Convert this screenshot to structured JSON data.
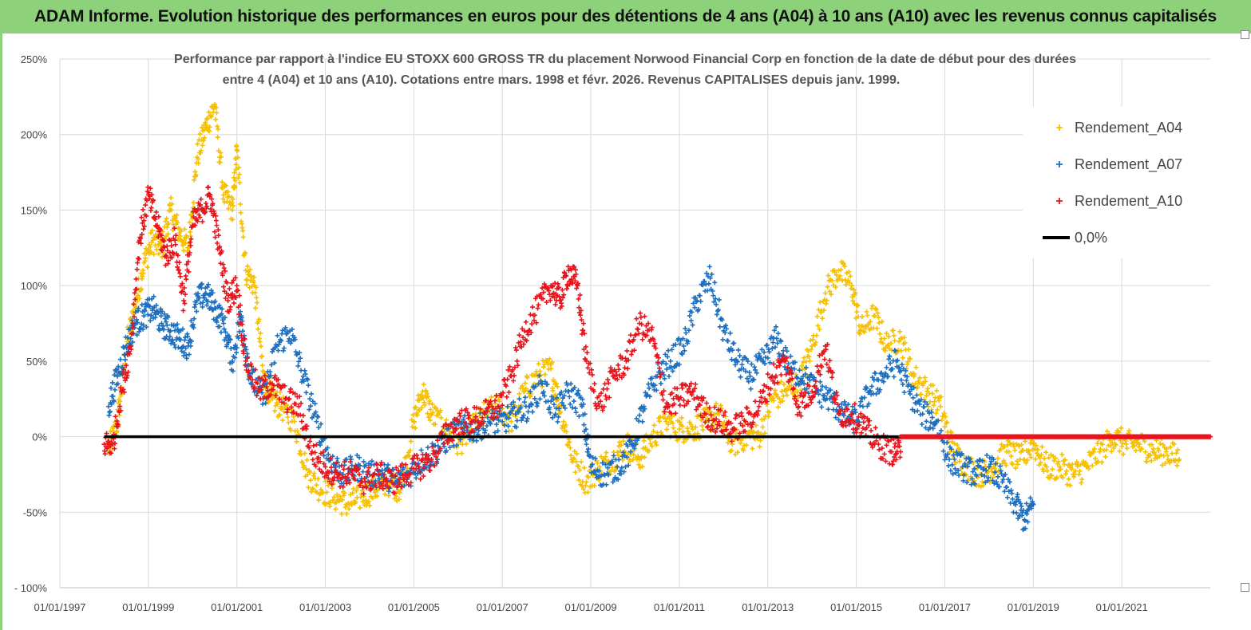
{
  "header": {
    "title": "ADAM Informe. Evolution historique des performances en euros pour des détentions de 4 ans (A04) à 10 ans (A10) avec les revenus connus capitalisés"
  },
  "chart_data": {
    "type": "scatter",
    "title_lines": [
      "Performance par rapport à l'indice EU STOXX 600 GROSS TR  du placement Norwood Financial Corp en fonction de la date de début pour des durées",
      "entre 4 (A04) et 10 ans (A10). Cotations entre mars. 1998 et févr. 2026. Revenus CAPITALISES depuis janv. 1999."
    ],
    "xlabel": "",
    "ylabel": "",
    "x_range": [
      1997.0,
      2023.0
    ],
    "ylim": [
      -100,
      250
    ],
    "y_ticks": [
      250,
      200,
      150,
      100,
      50,
      0,
      -50,
      -100
    ],
    "y_tick_labels": [
      "250%",
      "200%",
      "150%",
      "100%",
      "50%",
      "0%",
      "-50%",
      "- 100%"
    ],
    "x_ticks": [
      1997,
      1999,
      2001,
      2003,
      2005,
      2007,
      2009,
      2011,
      2013,
      2015,
      2017,
      2019,
      2021
    ],
    "x_tick_labels": [
      "01/01/1997",
      "01/01/1999",
      "01/01/2001",
      "01/01/2003",
      "01/01/2005",
      "01/01/2007",
      "01/01/2009",
      "01/01/2011",
      "01/01/2013",
      "01/01/2015",
      "01/01/2017",
      "01/01/2019",
      "01/01/2021"
    ],
    "grid": true,
    "legend_position": "top-right",
    "series": [
      {
        "name": "Rendement_A04",
        "color": "#f5c000",
        "marker": "plus",
        "x": [
          1998.1,
          1998.3,
          1998.5,
          1998.7,
          1998.9,
          1999.1,
          1999.3,
          1999.5,
          1999.7,
          1999.9,
          2000.1,
          2000.3,
          2000.5,
          2000.7,
          2000.9,
          2001.0,
          2001.2,
          2001.4,
          2001.6,
          2001.8,
          2002.0,
          2002.3,
          2002.6,
          2002.9,
          2003.2,
          2003.5,
          2003.8,
          2004.1,
          2004.4,
          2004.7,
          2005.0,
          2005.2,
          2005.4,
          2005.7,
          2006.0,
          2006.3,
          2006.6,
          2006.9,
          2007.2,
          2007.5,
          2007.8,
          2008.1,
          2008.3,
          2008.6,
          2008.9,
          2009.2,
          2009.5,
          2009.8,
          2010.1,
          2010.4,
          2010.7,
          2011.0,
          2011.3,
          2011.6,
          2011.9,
          2012.2,
          2012.5,
          2012.8,
          2013.1,
          2013.4,
          2013.7,
          2014.0,
          2014.3,
          2014.6,
          2014.9,
          2015.1,
          2015.4,
          2015.7,
          2016.0,
          2016.3,
          2016.6,
          2016.9,
          2017.2,
          2017.5,
          2017.8,
          2018.1,
          2018.4,
          2018.7,
          2019.0,
          2019.3,
          2019.6,
          2019.9,
          2020.2,
          2020.5,
          2020.8,
          2021.1,
          2021.4,
          2021.7,
          2022.0,
          2022.3
        ],
        "y": [
          -10,
          10,
          60,
          85,
          115,
          130,
          125,
          150,
          135,
          125,
          185,
          205,
          220,
          160,
          150,
          190,
          110,
          100,
          40,
          25,
          20,
          10,
          -25,
          -35,
          -40,
          -45,
          -40,
          -35,
          -30,
          -35,
          10,
          30,
          15,
          5,
          -5,
          5,
          15,
          20,
          10,
          30,
          40,
          45,
          20,
          -15,
          -30,
          -20,
          -15,
          -5,
          -15,
          0,
          10,
          5,
          5,
          10,
          15,
          -5,
          0,
          0,
          25,
          30,
          35,
          60,
          95,
          110,
          100,
          70,
          80,
          60,
          65,
          40,
          30,
          20,
          -10,
          -20,
          -25,
          -20,
          -10,
          -15,
          -5,
          -20,
          -20,
          -25,
          -20,
          -10,
          0,
          -5,
          -5,
          -10,
          -10,
          -15
        ]
      },
      {
        "name": "Rendement_A07",
        "color": "#1f6fbf",
        "marker": "plus",
        "x": [
          1998.1,
          1998.3,
          1998.5,
          1998.7,
          1998.9,
          1999.1,
          1999.3,
          1999.5,
          1999.7,
          1999.9,
          2000.1,
          2000.3,
          2000.5,
          2000.7,
          2000.9,
          2001.1,
          2001.3,
          2001.6,
          2001.9,
          2002.2,
          2002.5,
          2002.8,
          2003.1,
          2003.4,
          2003.7,
          2004.0,
          2004.3,
          2004.6,
          2004.9,
          2005.2,
          2005.5,
          2005.8,
          2006.1,
          2006.4,
          2006.7,
          2007.0,
          2007.3,
          2007.6,
          2007.9,
          2008.2,
          2008.5,
          2008.8,
          2009.0,
          2009.3,
          2009.6,
          2009.9,
          2010.2,
          2010.5,
          2010.8,
          2011.1,
          2011.4,
          2011.7,
          2012.0,
          2012.3,
          2012.6,
          2012.9,
          2013.2,
          2013.5,
          2013.8,
          2014.1,
          2014.4,
          2014.7,
          2015.0,
          2015.3,
          2015.6,
          2015.9,
          2016.2,
          2016.5,
          2016.8,
          2017.1,
          2017.4,
          2017.7,
          2018.0,
          2018.3,
          2018.6,
          2018.8,
          2019.0
        ],
        "y": [
          20,
          40,
          60,
          75,
          80,
          85,
          75,
          70,
          65,
          60,
          90,
          95,
          85,
          75,
          50,
          80,
          40,
          25,
          60,
          70,
          40,
          10,
          -15,
          -25,
          -20,
          -25,
          -25,
          -30,
          -25,
          -15,
          -10,
          0,
          5,
          5,
          10,
          10,
          15,
          20,
          35,
          15,
          30,
          20,
          -20,
          -25,
          -20,
          -10,
          20,
          40,
          50,
          60,
          90,
          105,
          70,
          50,
          40,
          50,
          65,
          45,
          40,
          30,
          25,
          15,
          10,
          30,
          40,
          50,
          30,
          15,
          10,
          -15,
          -20,
          -25,
          -20,
          -30,
          -45,
          -55,
          -45
        ]
      },
      {
        "name": "Rendement_A10",
        "color": "#e8141c",
        "marker": "plus",
        "x": [
          1998.0,
          1998.2,
          1998.4,
          1998.6,
          1998.8,
          1999.0,
          1999.2,
          1999.4,
          1999.6,
          1999.8,
          2000.0,
          2000.2,
          2000.4,
          2000.6,
          2000.8,
          2001.0,
          2001.2,
          2001.5,
          2001.8,
          2002.1,
          2002.4,
          2002.7,
          2003.0,
          2003.3,
          2003.6,
          2003.9,
          2004.2,
          2004.5,
          2004.8,
          2005.1,
          2005.4,
          2005.7,
          2006.0,
          2006.3,
          2006.6,
          2006.9,
          2007.2,
          2007.5,
          2007.8,
          2008.1,
          2008.3,
          2008.5,
          2008.7,
          2008.9,
          2009.2,
          2009.5,
          2009.8,
          2010.1,
          2010.4,
          2010.7,
          2011.0,
          2011.3,
          2011.6,
          2011.9,
          2012.2,
          2012.5,
          2012.8,
          2013.1,
          2013.4,
          2013.7,
          2014.0,
          2014.3,
          2014.6,
          2014.9,
          2015.2,
          2015.5,
          2015.8,
          2016.0
        ],
        "y": [
          -5,
          -5,
          30,
          60,
          130,
          160,
          140,
          120,
          130,
          90,
          140,
          150,
          160,
          125,
          90,
          100,
          50,
          30,
          35,
          25,
          20,
          -10,
          -20,
          -25,
          -25,
          -30,
          -25,
          -30,
          -25,
          -20,
          -15,
          0,
          10,
          10,
          15,
          20,
          40,
          70,
          85,
          100,
          90,
          110,
          100,
          50,
          20,
          40,
          50,
          75,
          65,
          20,
          25,
          30,
          15,
          10,
          5,
          10,
          20,
          40,
          50,
          20,
          30,
          60,
          15,
          15,
          5,
          -5,
          -10,
          -10
        ]
      }
    ],
    "zero_line": {
      "name": "0,0%",
      "y": 0,
      "color": "#000000"
    },
    "a10_zero_flat": {
      "x_start": 2016.0,
      "x_end": 2023.0,
      "y": 0
    }
  }
}
